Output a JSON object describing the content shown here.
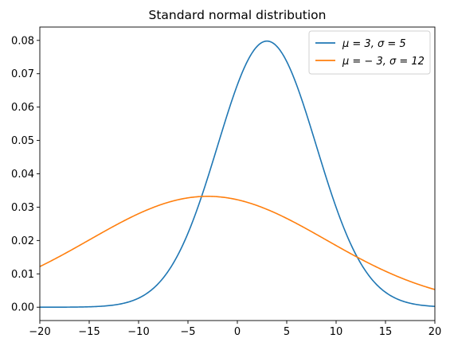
{
  "chart_data": {
    "type": "line",
    "title": "Standard normal distribution",
    "xlabel": "",
    "ylabel": "",
    "xlim": [
      -20,
      20
    ],
    "ylim": [
      -0.004,
      0.084
    ],
    "xticks": [
      -20,
      -15,
      -10,
      -5,
      0,
      5,
      10,
      15,
      20
    ],
    "xtick_labels": [
      "−20",
      "−15",
      "−10",
      "−5",
      "0",
      "5",
      "10",
      "15",
      "20"
    ],
    "yticks": [
      0.0,
      0.01,
      0.02,
      0.03,
      0.04,
      0.05,
      0.06,
      0.07,
      0.08
    ],
    "ytick_labels": [
      "0.00",
      "0.01",
      "0.02",
      "0.03",
      "0.04",
      "0.05",
      "0.06",
      "0.07",
      "0.08"
    ],
    "grid": false,
    "legend_position": "top-right",
    "series": [
      {
        "name": "μ = 3, σ = 5",
        "mu": 3,
        "sigma": 5,
        "color": "#1f77b4"
      },
      {
        "name": "μ = − 3, σ = 12",
        "mu": -3,
        "sigma": 12,
        "color": "#ff7f0e"
      }
    ]
  }
}
